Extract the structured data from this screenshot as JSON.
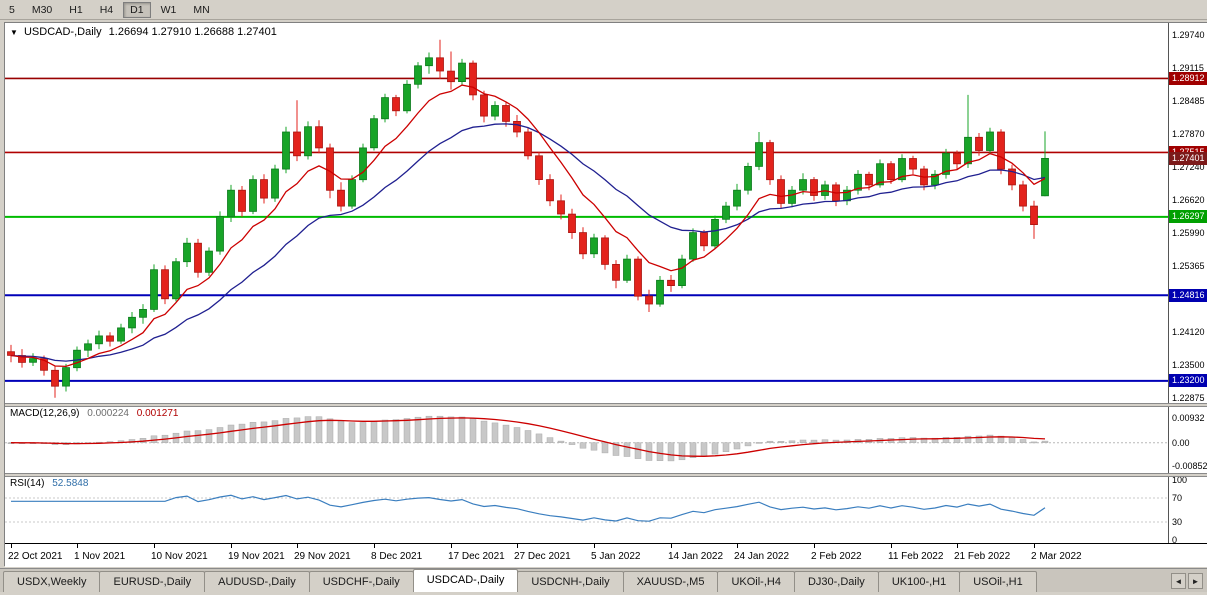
{
  "toolbar": {
    "timeframes": [
      {
        "label": "5",
        "active": false
      },
      {
        "label": "M30",
        "active": false
      },
      {
        "label": "H1",
        "active": false
      },
      {
        "label": "H4",
        "active": false
      },
      {
        "label": "D1",
        "active": true
      },
      {
        "label": "W1",
        "active": false
      },
      {
        "label": "MN",
        "active": false
      }
    ]
  },
  "chart_data": {
    "type": "candlestick",
    "title": {
      "symbol": "USDCAD-,Daily",
      "ohlc": "1.26694 1.27910 1.26688 1.27401"
    },
    "ylim": [
      1.2282,
      1.2992
    ],
    "colors": {
      "up": "#18a428",
      "up_border": "#0c7a1c",
      "down": "#e3231c",
      "down_border": "#a81410"
    },
    "ma": [
      {
        "period": 8,
        "color": "#cc0000",
        "name": "ma-fast"
      },
      {
        "period": 20,
        "color": "#202090",
        "name": "ma-slow"
      }
    ],
    "hlines": [
      {
        "price": 1.28912,
        "color": "#990000",
        "width": 1.6,
        "label": "1.28912"
      },
      {
        "price": 1.27515,
        "color": "#b00000",
        "width": 1.6,
        "label": "1.27515"
      },
      {
        "price": 1.26297,
        "color": "#00bb00",
        "width": 2,
        "label": "1.26297"
      },
      {
        "price": 1.24816,
        "color": "#0000b8",
        "width": 2,
        "label": "1.24816"
      },
      {
        "price": 1.232,
        "color": "#0000b8",
        "width": 2,
        "label": "1.23200"
      }
    ],
    "price_axis_labels": [
      {
        "v": 1.2974,
        "t": "1.29740"
      },
      {
        "v": 1.29115,
        "t": "1.29115"
      },
      {
        "v": 1.28485,
        "t": "1.28485"
      },
      {
        "v": 1.2787,
        "t": "1.27870"
      },
      {
        "v": 1.2724,
        "t": "1.27240"
      },
      {
        "v": 1.2662,
        "t": "1.26620"
      },
      {
        "v": 1.2599,
        "t": "1.25990"
      },
      {
        "v": 1.25365,
        "t": "1.25365"
      },
      {
        "v": 1.2474,
        "t": "1.24740"
      },
      {
        "v": 1.2412,
        "t": "1.24120"
      },
      {
        "v": 1.235,
        "t": "1.23500"
      },
      {
        "v": 1.22875,
        "t": "1.22875"
      }
    ],
    "price_badges": [
      {
        "price": 1.28912,
        "t": "1.28912",
        "bg": "#a00000"
      },
      {
        "price": 1.27515,
        "t": "1.27515",
        "bg": "#a00000"
      },
      {
        "price": 1.27401,
        "t": "1.27401",
        "bg": "#7c1a1a"
      },
      {
        "price": 1.26297,
        "t": "1.26297",
        "bg": "#00a000"
      },
      {
        "price": 1.24816,
        "t": "1.24816",
        "bg": "#0000b0"
      },
      {
        "price": 1.232,
        "t": "1.23200",
        "bg": "#0000b0"
      }
    ],
    "date_labels": [
      {
        "i": 0,
        "t": "22 Oct 2021"
      },
      {
        "i": 6,
        "t": "1 Nov 2021"
      },
      {
        "i": 13,
        "t": "10 Nov 2021"
      },
      {
        "i": 20,
        "t": "19 Nov 2021"
      },
      {
        "i": 26,
        "t": "29 Nov 2021"
      },
      {
        "i": 33,
        "t": "8 Dec 2021"
      },
      {
        "i": 40,
        "t": "17 Dec 2021"
      },
      {
        "i": 46,
        "t": "27 Dec 2021"
      },
      {
        "i": 53,
        "t": "5 Jan 2022"
      },
      {
        "i": 60,
        "t": "14 Jan 2022"
      },
      {
        "i": 66,
        "t": "24 Jan 2022"
      },
      {
        "i": 73,
        "t": "2 Feb 2022"
      },
      {
        "i": 80,
        "t": "11 Feb 2022"
      },
      {
        "i": 86,
        "t": "21 Feb 2022"
      },
      {
        "i": 93,
        "t": "2 Mar 2022"
      }
    ],
    "candles": [
      [
        1.2375,
        1.2388,
        1.2355,
        1.2368
      ],
      [
        1.2368,
        1.238,
        1.2345,
        1.2355
      ],
      [
        1.2355,
        1.2372,
        1.2348,
        1.2362
      ],
      [
        1.2362,
        1.2368,
        1.233,
        1.234
      ],
      [
        1.234,
        1.2348,
        1.2288,
        1.231
      ],
      [
        1.231,
        1.2352,
        1.23,
        1.2345
      ],
      [
        1.2345,
        1.2385,
        1.2338,
        1.2378
      ],
      [
        1.2378,
        1.2398,
        1.2365,
        1.239
      ],
      [
        1.239,
        1.2415,
        1.238,
        1.2405
      ],
      [
        1.2405,
        1.2412,
        1.2385,
        1.2395
      ],
      [
        1.2395,
        1.2428,
        1.239,
        1.242
      ],
      [
        1.242,
        1.245,
        1.241,
        1.244
      ],
      [
        1.244,
        1.2465,
        1.2428,
        1.2455
      ],
      [
        1.2455,
        1.254,
        1.245,
        1.253
      ],
      [
        1.253,
        1.2538,
        1.2465,
        1.2475
      ],
      [
        1.2475,
        1.2552,
        1.247,
        1.2545
      ],
      [
        1.2545,
        1.259,
        1.2535,
        1.258
      ],
      [
        1.258,
        1.2588,
        1.2515,
        1.2525
      ],
      [
        1.2525,
        1.2572,
        1.2518,
        1.2565
      ],
      [
        1.2565,
        1.264,
        1.2558,
        1.263
      ],
      [
        1.263,
        1.269,
        1.262,
        1.268
      ],
      [
        1.268,
        1.2688,
        1.263,
        1.264
      ],
      [
        1.264,
        1.2708,
        1.2635,
        1.27
      ],
      [
        1.27,
        1.271,
        1.2655,
        1.2665
      ],
      [
        1.2665,
        1.2728,
        1.2658,
        1.272
      ],
      [
        1.272,
        1.28,
        1.2712,
        1.279
      ],
      [
        1.279,
        1.285,
        1.2735,
        1.2745
      ],
      [
        1.2745,
        1.281,
        1.2738,
        1.28
      ],
      [
        1.28,
        1.2812,
        1.275,
        1.276
      ],
      [
        1.276,
        1.2768,
        1.2665,
        1.268
      ],
      [
        1.268,
        1.2695,
        1.264,
        1.265
      ],
      [
        1.265,
        1.2708,
        1.2645,
        1.27
      ],
      [
        1.27,
        1.2768,
        1.2695,
        1.276
      ],
      [
        1.276,
        1.2822,
        1.2755,
        1.2815
      ],
      [
        1.2815,
        1.2862,
        1.2808,
        1.2855
      ],
      [
        1.2855,
        1.286,
        1.282,
        1.283
      ],
      [
        1.283,
        1.2888,
        1.2825,
        1.288
      ],
      [
        1.288,
        1.2922,
        1.2872,
        1.2915
      ],
      [
        1.2915,
        1.294,
        1.29,
        1.293
      ],
      [
        1.293,
        1.2964,
        1.289,
        1.2905
      ],
      [
        1.2905,
        1.2942,
        1.287,
        1.2885
      ],
      [
        1.2885,
        1.2928,
        1.2878,
        1.292
      ],
      [
        1.292,
        1.2925,
        1.285,
        1.286
      ],
      [
        1.286,
        1.2868,
        1.2808,
        1.282
      ],
      [
        1.282,
        1.2848,
        1.2812,
        1.284
      ],
      [
        1.284,
        1.2846,
        1.28,
        1.281
      ],
      [
        1.281,
        1.2822,
        1.278,
        1.279
      ],
      [
        1.279,
        1.2798,
        1.2738,
        1.2745
      ],
      [
        1.2745,
        1.2752,
        1.269,
        1.27
      ],
      [
        1.27,
        1.271,
        1.265,
        1.266
      ],
      [
        1.266,
        1.2672,
        1.2625,
        1.2635
      ],
      [
        1.2635,
        1.2645,
        1.2588,
        1.26
      ],
      [
        1.26,
        1.261,
        1.255,
        1.256
      ],
      [
        1.256,
        1.2598,
        1.2552,
        1.259
      ],
      [
        1.259,
        1.2595,
        1.253,
        1.254
      ],
      [
        1.254,
        1.2548,
        1.2495,
        1.251
      ],
      [
        1.251,
        1.2558,
        1.2505,
        1.255
      ],
      [
        1.255,
        1.2555,
        1.2472,
        1.248
      ],
      [
        1.248,
        1.2492,
        1.245,
        1.2465
      ],
      [
        1.2465,
        1.2518,
        1.246,
        1.251
      ],
      [
        1.251,
        1.252,
        1.2488,
        1.25
      ],
      [
        1.25,
        1.2558,
        1.2495,
        1.255
      ],
      [
        1.255,
        1.2608,
        1.2545,
        1.26
      ],
      [
        1.26,
        1.2605,
        1.2565,
        1.2575
      ],
      [
        1.2575,
        1.2632,
        1.257,
        1.2625
      ],
      [
        1.2625,
        1.2658,
        1.2618,
        1.265
      ],
      [
        1.265,
        1.2692,
        1.2642,
        1.268
      ],
      [
        1.268,
        1.2732,
        1.2672,
        1.2725
      ],
      [
        1.2725,
        1.279,
        1.2718,
        1.277
      ],
      [
        1.277,
        1.2775,
        1.269,
        1.27
      ],
      [
        1.27,
        1.2708,
        1.2645,
        1.2655
      ],
      [
        1.2655,
        1.2688,
        1.2648,
        1.268
      ],
      [
        1.268,
        1.2712,
        1.2672,
        1.27
      ],
      [
        1.27,
        1.2705,
        1.266,
        1.267
      ],
      [
        1.267,
        1.2698,
        1.2662,
        1.269
      ],
      [
        1.269,
        1.2695,
        1.265,
        1.266
      ],
      [
        1.266,
        1.2688,
        1.2652,
        1.268
      ],
      [
        1.268,
        1.2718,
        1.2672,
        1.271
      ],
      [
        1.271,
        1.2715,
        1.268,
        1.269
      ],
      [
        1.269,
        1.2738,
        1.2685,
        1.273
      ],
      [
        1.273,
        1.2735,
        1.2692,
        1.27
      ],
      [
        1.27,
        1.2748,
        1.2695,
        1.274
      ],
      [
        1.274,
        1.2745,
        1.271,
        1.272
      ],
      [
        1.272,
        1.2726,
        1.268,
        1.269
      ],
      [
        1.269,
        1.2718,
        1.2682,
        1.271
      ],
      [
        1.271,
        1.2758,
        1.2702,
        1.275
      ],
      [
        1.275,
        1.2755,
        1.272,
        1.273
      ],
      [
        1.273,
        1.286,
        1.2722,
        1.278
      ],
      [
        1.278,
        1.2788,
        1.2745,
        1.2755
      ],
      [
        1.2755,
        1.2798,
        1.2748,
        1.279
      ],
      [
        1.279,
        1.2795,
        1.271,
        1.272
      ],
      [
        1.272,
        1.2728,
        1.268,
        1.269
      ],
      [
        1.269,
        1.2698,
        1.264,
        1.265
      ],
      [
        1.265,
        1.266,
        1.2588,
        1.2615
      ],
      [
        1.26694,
        1.2791,
        1.26688,
        1.27401
      ]
    ],
    "macd": {
      "label": "MACD(12,26,9)",
      "main_value": "0.000224",
      "signal_value": "0.001271",
      "fast": 12,
      "slow": 26,
      "signal_period": 9,
      "ylim": [
        -0.0105,
        0.0125
      ],
      "hist_color": "#c8c8c8",
      "line_color": "#cc0000",
      "axis_labels": [
        {
          "v": 0.00932,
          "t": "0.00932"
        },
        {
          "v": 0,
          "t": "0.00"
        },
        {
          "v": -0.00852,
          "t": "-0.00852"
        }
      ]
    },
    "rsi": {
      "label": "RSI(14)",
      "value": "52.5848",
      "period": 14,
      "ylim": [
        0,
        100
      ],
      "color": "#3a7ebf",
      "levels": [
        70,
        30
      ],
      "axis_labels": [
        {
          "v": 100,
          "t": "100"
        },
        {
          "v": 70,
          "t": "70"
        },
        {
          "v": 30,
          "t": "30"
        },
        {
          "v": 0,
          "t": "0"
        }
      ]
    }
  },
  "tabs": {
    "left_arrow": "◄",
    "right_arrow": "►",
    "items": [
      {
        "label": "USDX,Weekly",
        "active": false
      },
      {
        "label": "EURUSD-,Daily",
        "active": false
      },
      {
        "label": "AUDUSD-,Daily",
        "active": false
      },
      {
        "label": "USDCHF-,Daily",
        "active": false
      },
      {
        "label": "USDCAD-,Daily",
        "active": true
      },
      {
        "label": "USDCNH-,Daily",
        "active": false
      },
      {
        "label": "XAUUSD-,M5",
        "active": false
      },
      {
        "label": "UKOil-,H4",
        "active": false
      },
      {
        "label": "DJ30-,Daily",
        "active": false
      },
      {
        "label": "UK100-,H1",
        "active": false
      },
      {
        "label": "USOil-,H1",
        "active": false
      }
    ]
  }
}
